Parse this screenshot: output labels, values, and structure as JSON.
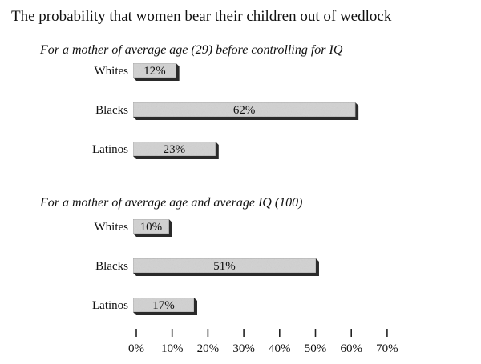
{
  "chart_data": {
    "type": "bar",
    "orientation": "horizontal",
    "title": "The probability that women bear their children out of wedlock",
    "panels": [
      {
        "subtitle": "For a mother of average age (29) before controlling for IQ",
        "categories": [
          "Whites",
          "Blacks",
          "Latinos"
        ],
        "values": [
          12,
          62,
          23
        ],
        "labels": [
          "12%",
          "62%",
          "23%"
        ]
      },
      {
        "subtitle": "For a mother of average age and average IQ  (100)",
        "categories": [
          "Whites",
          "Blacks",
          "Latinos"
        ],
        "values": [
          10,
          51,
          17
        ],
        "labels": [
          "10%",
          "51%",
          "17%"
        ]
      }
    ],
    "xaxis": {
      "ticks": [
        0,
        10,
        20,
        30,
        40,
        50,
        60,
        70
      ],
      "tick_labels": [
        "0%",
        "10%",
        "20%",
        "30%",
        "40%",
        "50%",
        "60%",
        "70%"
      ],
      "xlim": [
        0,
        70
      ]
    },
    "grid": false,
    "legend": "none",
    "bar_color": "#d4d4d4",
    "bar_shadow_color": "#2a2a2a"
  }
}
